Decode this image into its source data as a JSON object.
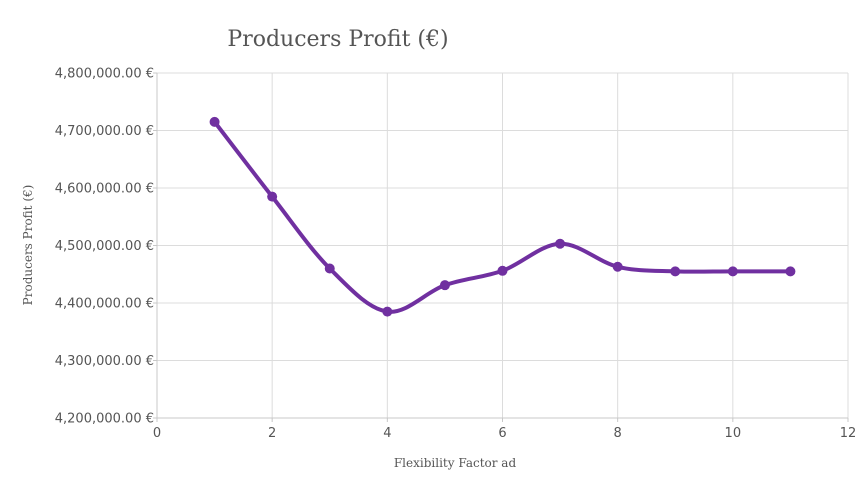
{
  "chart_data": {
    "type": "line",
    "title": "Producers Profit (€)",
    "xlabel": "Flexibility Factor ad",
    "ylabel": "Producers Profit (€)",
    "xlim": [
      0,
      12
    ],
    "ylim": [
      4200000,
      4800000
    ],
    "x_ticks": [
      0,
      2,
      4,
      6,
      8,
      10,
      12
    ],
    "y_ticks": [
      4200000,
      4300000,
      4400000,
      4500000,
      4600000,
      4700000,
      4800000
    ],
    "y_tick_labels": [
      "4,200,000.00 €",
      "4,300,000.00 €",
      "4,400,000.00 €",
      "4,500,000.00 €",
      "4,600,000.00 €",
      "4,700,000.00 €",
      "4,800,000.00 €"
    ],
    "grid": true,
    "line_style": "smooth",
    "color": "#7030a0",
    "series": [
      {
        "x": [
          1,
          2,
          3,
          4,
          5,
          6,
          7,
          8,
          9,
          10,
          11
        ],
        "values": [
          4715000,
          4585000,
          4460000,
          4385000,
          4431000,
          4456000,
          4503000,
          4463000,
          4455000,
          4455000,
          4455000
        ]
      }
    ]
  }
}
